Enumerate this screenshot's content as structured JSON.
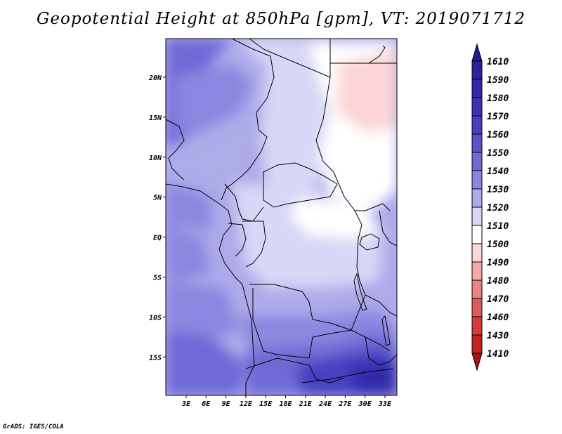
{
  "title": "Geopotential Height at 850hPa [gpm], VT: 2019071712",
  "footer": "GrADS: IGES/COLA",
  "map": {
    "lon_ticks": [
      "3E",
      "6E",
      "9E",
      "12E",
      "15E",
      "18E",
      "21E",
      "24E",
      "27E",
      "30E",
      "33E"
    ],
    "lat_ticks": [
      "20N",
      "15N",
      "10N",
      "5N",
      "EQ",
      "5S",
      "10S",
      "15S"
    ]
  },
  "colorbar": {
    "levels": [
      "1610",
      "1590",
      "1580",
      "1570",
      "1560",
      "1550",
      "1540",
      "1530",
      "1520",
      "1510",
      "1500",
      "1490",
      "1480",
      "1470",
      "1460",
      "1430",
      "1410"
    ],
    "colors": [
      "#221c8c",
      "#2a249c",
      "#3229aa",
      "#3a33b6",
      "#4740c0",
      "#5a54cc",
      "#6f6ad6",
      "#8b87e0",
      "#aeabea",
      "#d8d7f6",
      "#ffffff",
      "#fcd6d6",
      "#f5aaaa",
      "#ec8484",
      "#e05a5a",
      "#d43c3c",
      "#c22222",
      "#a81414"
    ]
  },
  "colors": {
    "field_base": "#aeabea",
    "land_border": "#000000"
  }
}
